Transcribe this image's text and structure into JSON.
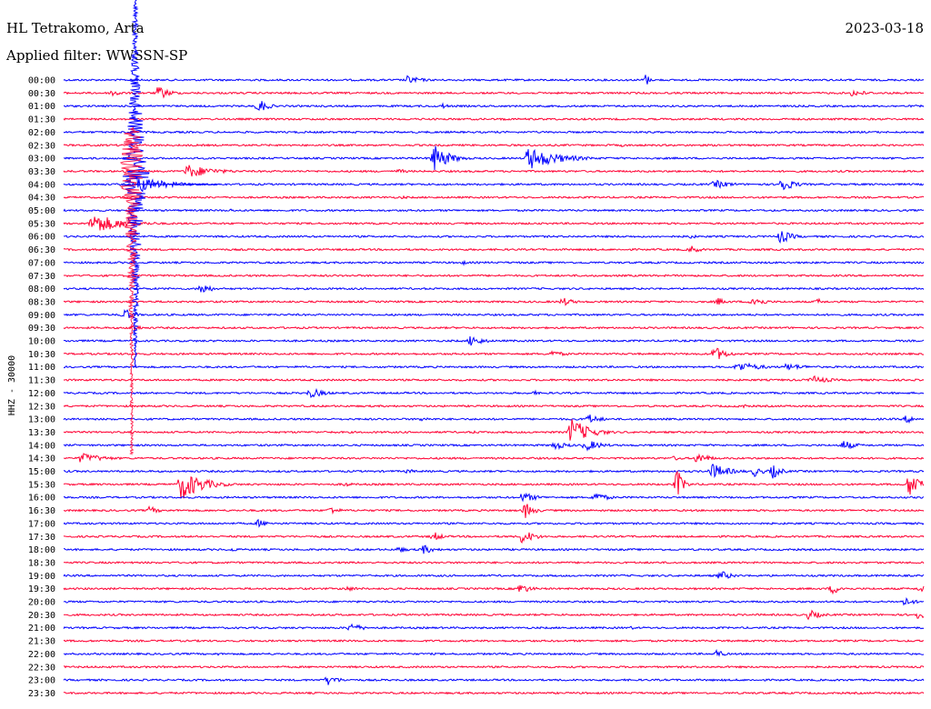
{
  "chart_data": {
    "type": "line",
    "title": "HL Tetrakomo, Arta",
    "date": "2023-03-18",
    "filter_text": "Applied filter: WWSSN-SP",
    "ylabel": "HHZ - 30000",
    "x_range_minutes": [
      0,
      30
    ],
    "line_colors": [
      "#0000ff",
      "#ff0033"
    ],
    "rows": [
      {
        "label": "00:00",
        "events": [
          {
            "x": 12.0,
            "amp": 5,
            "w": 0.5
          },
          {
            "x": 20.3,
            "amp": 10,
            "w": 0.1
          }
        ]
      },
      {
        "label": "00:30",
        "events": [
          {
            "x": 1.7,
            "amp": 5,
            "w": 0.3
          },
          {
            "x": 3.3,
            "amp": 8,
            "w": 0.4
          },
          {
            "x": 27.5,
            "amp": 4,
            "w": 0.6
          }
        ]
      },
      {
        "label": "01:00",
        "events": [
          {
            "x": 6.8,
            "amp": 9,
            "w": 0.3
          },
          {
            "x": 13.2,
            "amp": 3,
            "w": 0.3
          }
        ]
      },
      {
        "label": "01:30",
        "events": [
          {
            "x": 15.3,
            "amp": 2,
            "w": 0.3
          }
        ]
      },
      {
        "label": "02:00",
        "events": []
      },
      {
        "label": "02:30",
        "events": [
          {
            "x": 19.5,
            "amp": 2,
            "w": 0.2
          }
        ]
      },
      {
        "label": "03:00",
        "events": [
          {
            "x": 12.9,
            "amp": 16,
            "w": 0.5
          },
          {
            "x": 16.2,
            "amp": 13,
            "w": 1.0
          }
        ]
      },
      {
        "label": "03:30",
        "events": [
          {
            "x": 4.3,
            "amp": 8,
            "w": 0.9
          },
          {
            "x": 11.7,
            "amp": 3,
            "w": 0.3
          }
        ]
      },
      {
        "label": "04:00",
        "events": [
          {
            "x": 22.7,
            "amp": 5,
            "w": 0.6
          },
          {
            "x": 25.0,
            "amp": 10,
            "w": 0.4
          }
        ]
      },
      {
        "label": "04:30",
        "events": [
          {
            "x": 11.8,
            "amp": 2,
            "w": 0.3
          }
        ]
      },
      {
        "label": "05:00",
        "events": [
          {
            "x": 5.8,
            "amp": 2,
            "w": 0.2
          }
        ]
      },
      {
        "label": "05:30",
        "events": [
          {
            "x": 1.0,
            "amp": 12,
            "w": 1.0
          }
        ]
      },
      {
        "label": "06:00",
        "events": [
          {
            "x": 21.8,
            "amp": 3,
            "w": 0.3
          },
          {
            "x": 25.0,
            "amp": 8,
            "w": 0.4
          }
        ]
      },
      {
        "label": "06:30",
        "events": [
          {
            "x": 21.9,
            "amp": 5,
            "w": 0.3
          }
        ]
      },
      {
        "label": "07:00",
        "events": [
          {
            "x": 13.9,
            "amp": 3,
            "w": 0.2
          }
        ]
      },
      {
        "label": "07:30",
        "events": []
      },
      {
        "label": "08:00",
        "events": [
          {
            "x": 4.8,
            "amp": 8,
            "w": 0.3
          }
        ]
      },
      {
        "label": "08:30",
        "events": [
          {
            "x": 17.4,
            "amp": 5,
            "w": 0.4
          },
          {
            "x": 22.8,
            "amp": 5,
            "w": 0.3
          },
          {
            "x": 24.0,
            "amp": 7,
            "w": 0.4
          },
          {
            "x": 26.3,
            "amp": 4,
            "w": 0.2
          }
        ]
      },
      {
        "label": "09:00",
        "events": [
          {
            "x": 2.1,
            "amp": 8,
            "w": 0.3
          }
        ]
      },
      {
        "label": "09:30",
        "events": [
          {
            "x": 2.4,
            "amp": 5,
            "w": 0.3
          }
        ]
      },
      {
        "label": "10:00",
        "events": [
          {
            "x": 14.2,
            "amp": 7,
            "w": 0.4
          },
          {
            "x": 7.7,
            "amp": 2,
            "w": 0.2
          }
        ]
      },
      {
        "label": "10:30",
        "events": [
          {
            "x": 17.0,
            "amp": 4,
            "w": 0.5
          },
          {
            "x": 22.7,
            "amp": 9,
            "w": 0.4
          }
        ]
      },
      {
        "label": "11:00",
        "events": [
          {
            "x": 23.5,
            "amp": 6,
            "w": 0.8
          },
          {
            "x": 25.2,
            "amp": 4,
            "w": 0.8
          }
        ]
      },
      {
        "label": "11:30",
        "events": [
          {
            "x": 26.1,
            "amp": 5,
            "w": 0.6
          }
        ]
      },
      {
        "label": "12:00",
        "events": [
          {
            "x": 8.6,
            "amp": 6,
            "w": 0.5
          },
          {
            "x": 16.4,
            "amp": 3,
            "w": 0.2
          }
        ]
      },
      {
        "label": "12:30",
        "events": [
          {
            "x": 23.6,
            "amp": 3,
            "w": 0.3
          }
        ]
      },
      {
        "label": "13:00",
        "events": [
          {
            "x": 12.5,
            "amp": 3,
            "w": 0.3
          },
          {
            "x": 18.3,
            "amp": 6,
            "w": 0.4
          },
          {
            "x": 29.4,
            "amp": 5,
            "w": 0.3
          }
        ]
      },
      {
        "label": "13:30",
        "events": [
          {
            "x": 17.7,
            "amp": 16,
            "w": 0.6
          },
          {
            "x": 14.3,
            "amp": 2,
            "w": 0.3
          }
        ]
      },
      {
        "label": "14:00",
        "events": [
          {
            "x": 17.1,
            "amp": 5,
            "w": 0.5
          },
          {
            "x": 18.2,
            "amp": 7,
            "w": 0.5
          },
          {
            "x": 27.2,
            "amp": 6,
            "w": 0.4
          }
        ]
      },
      {
        "label": "14:30",
        "events": [
          {
            "x": 0.6,
            "amp": 6,
            "w": 0.8
          },
          {
            "x": 22.1,
            "amp": 7,
            "w": 0.4
          },
          {
            "x": 21.3,
            "amp": 3,
            "w": 0.3
          }
        ]
      },
      {
        "label": "15:00",
        "events": [
          {
            "x": 22.6,
            "amp": 9,
            "w": 0.6
          },
          {
            "x": 24.1,
            "amp": 6,
            "w": 0.3
          },
          {
            "x": 24.7,
            "amp": 9,
            "w": 0.3
          },
          {
            "x": 12.0,
            "amp": 3,
            "w": 0.3
          }
        ]
      },
      {
        "label": "15:30",
        "events": [
          {
            "x": 4.1,
            "amp": 18,
            "w": 0.7
          },
          {
            "x": 9.8,
            "amp": 3,
            "w": 0.3
          },
          {
            "x": 21.4,
            "amp": 18,
            "w": 0.2
          },
          {
            "x": 29.5,
            "amp": 14,
            "w": 0.6
          }
        ]
      },
      {
        "label": "16:00",
        "events": [
          {
            "x": 16.0,
            "amp": 6,
            "w": 0.5
          },
          {
            "x": 18.5,
            "amp": 7,
            "w": 0.4
          }
        ]
      },
      {
        "label": "16:30",
        "events": [
          {
            "x": 3.0,
            "amp": 5,
            "w": 0.3
          },
          {
            "x": 9.3,
            "amp": 5,
            "w": 0.3
          },
          {
            "x": 16.1,
            "amp": 9,
            "w": 0.3
          }
        ]
      },
      {
        "label": "17:00",
        "events": [
          {
            "x": 6.8,
            "amp": 5,
            "w": 0.3
          }
        ]
      },
      {
        "label": "17:30",
        "events": [
          {
            "x": 12.9,
            "amp": 6,
            "w": 0.3
          },
          {
            "x": 16.0,
            "amp": 9,
            "w": 0.4
          }
        ]
      },
      {
        "label": "18:00",
        "events": [
          {
            "x": 5.8,
            "amp": 3,
            "w": 0.3
          },
          {
            "x": 11.7,
            "amp": 4,
            "w": 0.3
          },
          {
            "x": 12.5,
            "amp": 6,
            "w": 0.4
          }
        ]
      },
      {
        "label": "18:30",
        "events": []
      },
      {
        "label": "19:00",
        "events": [
          {
            "x": 22.9,
            "amp": 6,
            "w": 0.4
          }
        ]
      },
      {
        "label": "19:30",
        "events": [
          {
            "x": 9.8,
            "amp": 3,
            "w": 0.6
          },
          {
            "x": 15.9,
            "amp": 6,
            "w": 0.4
          },
          {
            "x": 26.8,
            "amp": 6,
            "w": 0.4
          },
          {
            "x": 29.9,
            "amp": 6,
            "w": 0.3
          }
        ]
      },
      {
        "label": "20:00",
        "events": [
          {
            "x": 29.3,
            "amp": 5,
            "w": 0.4
          }
        ]
      },
      {
        "label": "20:30",
        "events": [
          {
            "x": 26.0,
            "amp": 6,
            "w": 0.4
          },
          {
            "x": 29.8,
            "amp": 6,
            "w": 0.3
          }
        ]
      },
      {
        "label": "21:00",
        "events": [
          {
            "x": 10.0,
            "amp": 6,
            "w": 0.4
          },
          {
            "x": 19.8,
            "amp": 2,
            "w": 0.2
          }
        ]
      },
      {
        "label": "21:30",
        "events": []
      },
      {
        "label": "22:00",
        "events": [
          {
            "x": 22.8,
            "amp": 6,
            "w": 0.2
          },
          {
            "x": 5.4,
            "amp": 2,
            "w": 0.1
          }
        ]
      },
      {
        "label": "22:30",
        "events": []
      },
      {
        "label": "23:00",
        "events": [
          {
            "x": 9.2,
            "amp": 6,
            "w": 0.4
          }
        ]
      },
      {
        "label": "23:30",
        "events": []
      }
    ],
    "major_event": {
      "row_label": "03:30",
      "x": 2.5,
      "peak_amp": 200
    }
  }
}
